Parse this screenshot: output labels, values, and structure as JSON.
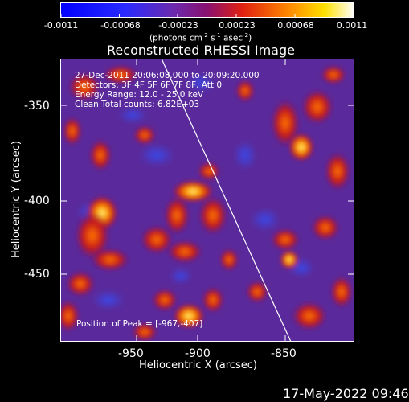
{
  "colorbar": {
    "ticks": [
      "-0.0011",
      "-0.00068",
      "-0.00023",
      "0.00023",
      "0.00068",
      "0.0011"
    ],
    "units_prefix": "(photons cm",
    "units_exp1": "-2",
    "units_mid1": " s",
    "units_exp2": "-1",
    "units_mid2": " asec",
    "units_exp3": "-2",
    "units_suffix": ")"
  },
  "plot": {
    "title": "Reconstructed RHESSI Image",
    "xlabel": "Heliocentric X (arcsec)",
    "ylabel": "Heliocentric Y (arcsec)",
    "xticks": [
      "-950",
      "-900",
      "-850"
    ],
    "yticks": [
      "-350",
      "-400",
      "-450"
    ],
    "info_lines": [
      "27-Dec-2011 20:06:08.000 to 20:09:20.000",
      "Detectors: 3F 4F 5F 6F 7F 8F, Att 0",
      "Energy Range: 12.0 - 25.0 keV",
      "Clean    Total counts: 6.82E+03"
    ],
    "peak_label": "Position of Peak = [-967,-407]"
  },
  "footer": {
    "timestamp": "17-May-2022 09:46"
  },
  "colors": {
    "background": "#000000",
    "foreground": "#ffffff",
    "base_purple": "#5a2a9c"
  }
}
